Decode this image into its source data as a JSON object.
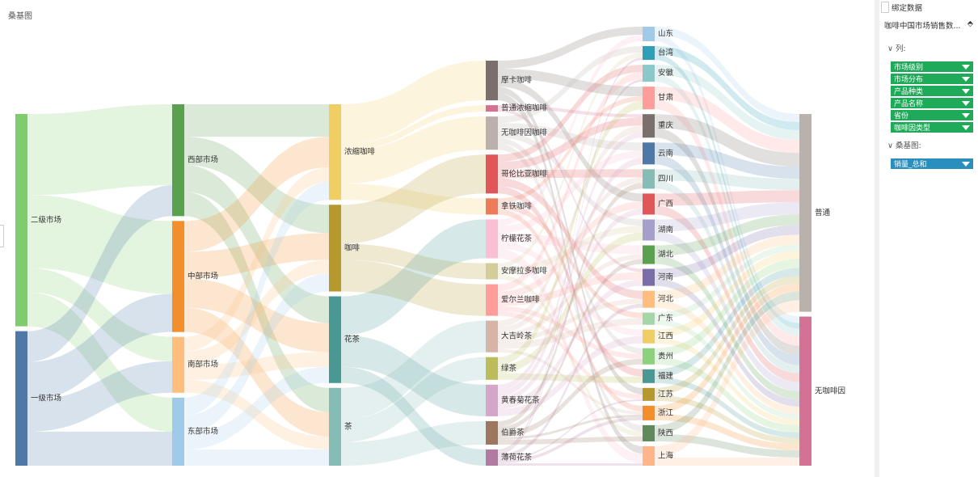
{
  "chart_data": {
    "type": "sankey",
    "title": "桑基图",
    "node_padding": 6,
    "levels": [
      {
        "nodes": [
          {
            "name": "二级市场",
            "color": "#7fcc6d",
            "flows": [
              100,
              90,
              30,
              42
            ]
          },
          {
            "name": "一级市场",
            "color": "#4e79a7",
            "flows": [
              38,
              47,
              39,
              42
            ]
          }
        ]
      },
      {
        "nodes": [
          {
            "name": "西部市场",
            "color": "#59a14f",
            "flows": [
              40,
              35,
              33,
              30
            ]
          },
          {
            "name": "中部市场",
            "color": "#f28e2b",
            "flows": [
              38,
              33,
              36,
              30
            ]
          },
          {
            "name": "南部市场",
            "color": "#ffbe7d",
            "flows": [
              18,
              17,
              18,
              16
            ]
          },
          {
            "name": "东部市场",
            "color": "#a0cbe8",
            "flows": [
              22,
              22,
              20,
              20
            ]
          }
        ]
      },
      {
        "nodes": [
          {
            "name": "浓缩咖啡",
            "color": "#f1ce63",
            "flows": [
              49,
              8,
              41,
              0,
              20,
              0,
              0,
              0,
              0,
              0,
              0,
              0,
              0
            ]
          },
          {
            "name": "咖啡",
            "color": "#b6992d",
            "flows": [
              0,
              0,
              0,
              48,
              0,
              0,
              20,
              39,
              0,
              0,
              0,
              0,
              0
            ]
          },
          {
            "name": "花茶",
            "color": "#499894",
            "flows": [
              0,
              0,
              0,
              0,
              0,
              48,
              0,
              0,
              0,
              0,
              39,
              0,
              20
            ]
          },
          {
            "name": "茶",
            "color": "#86bcb6",
            "flows": [
              0,
              0,
              0,
              0,
              0,
              0,
              0,
              0,
              39,
              28,
              0,
              29,
              0
            ]
          }
        ]
      },
      {
        "nodes": [
          {
            "name": "摩卡咖啡",
            "color": "#79706e",
            "flows": [
              10,
              0,
              0,
              12,
              0,
              0,
              0,
              10,
              0,
              0,
              0,
              0,
              0,
              0,
              0,
              0,
              8,
              0,
              0,
              9
            ]
          },
          {
            "name": "普通浓缩咖啡",
            "color": "#d37295",
            "flows": [
              0,
              0,
              0,
              0,
              4,
              0,
              0,
              0,
              0,
              0,
              4,
              0,
              0,
              0,
              0,
              0,
              0,
              0,
              0,
              0
            ]
          },
          {
            "name": "无咖啡因咖啡",
            "color": "#bab0ac",
            "flows": [
              0,
              8,
              0,
              0,
              0,
              10,
              0,
              0,
              8,
              0,
              0,
              0,
              0,
              0,
              7,
              0,
              0,
              0,
              8,
              0
            ]
          },
          {
            "name": "哥伦比亚咖啡",
            "color": "#e15759",
            "flows": [
              0,
              0,
              9,
              0,
              10,
              0,
              10,
              0,
              0,
              0,
              0,
              10,
              0,
              0,
              0,
              9,
              0,
              0,
              0,
              0
            ]
          },
          {
            "name": "拿铁咖啡",
            "color": "#ed7d5a",
            "flows": [
              0,
              0,
              0,
              6,
              0,
              0,
              0,
              0,
              0,
              0,
              0,
              0,
              7,
              0,
              0,
              0,
              0,
              7,
              0,
              0
            ]
          },
          {
            "name": "柠檬花茶",
            "color": "#fabfd2",
            "flows": [
              8,
              0,
              0,
              0,
              0,
              9,
              0,
              0,
              0,
              11,
              0,
              0,
              0,
              8,
              0,
              0,
              0,
              0,
              0,
              12
            ]
          },
          {
            "name": "安摩拉多咖啡",
            "color": "#d4cd9a",
            "flows": [
              0,
              6,
              0,
              0,
              0,
              0,
              0,
              0,
              8,
              0,
              0,
              0,
              0,
              0,
              0,
              0,
              0,
              0,
              6,
              0
            ]
          },
          {
            "name": "爱尔兰咖啡",
            "color": "#ff9d9a",
            "flows": [
              0,
              0,
              9,
              0,
              0,
              0,
              0,
              9,
              0,
              0,
              9,
              0,
              0,
              0,
              6,
              0,
              6,
              0,
              0,
              0
            ]
          },
          {
            "name": "大吉岭茶",
            "color": "#d7b5a6",
            "flows": [
              0,
              0,
              0,
              0,
              8,
              0,
              7,
              0,
              0,
              6,
              0,
              6,
              8,
              0,
              0,
              0,
              0,
              4,
              0,
              0
            ]
          },
          {
            "name": "绿茶",
            "color": "#bcbd5a",
            "flows": [
              0,
              0,
              0,
              10,
              0,
              0,
              0,
              0,
              10,
              0,
              0,
              0,
              0,
              0,
              0,
              8,
              0,
              0,
              0,
              0
            ]
          },
          {
            "name": "黄春菊花茶",
            "color": "#d4a6c8",
            "flows": [
              0,
              0,
              0,
              0,
              7,
              8,
              0,
              7,
              0,
              0,
              8,
              0,
              0,
              9,
              0,
              0,
              0,
              0,
              0,
              0
            ]
          },
          {
            "name": "伯爵茶",
            "color": "#9d7660",
            "flows": [
              0,
              0,
              0,
              0,
              0,
              0,
              7,
              0,
              0,
              6,
              0,
              0,
              0,
              0,
              7,
              0,
              0,
              3,
              6,
              0
            ]
          },
          {
            "name": "薄荷花茶",
            "color": "#b07aa1",
            "flows": [
              0,
              3,
              3,
              0,
              0,
              0,
              0,
              0,
              0,
              0,
              0,
              5,
              0,
              0,
              0,
              0,
              2,
              4,
              0,
              3
            ]
          }
        ]
      },
      {
        "nodes": [
          {
            "name": "山东",
            "color": "#a0cbe8",
            "flows": [
              10,
              8
            ]
          },
          {
            "name": "台湾",
            "color": "#2f9fb8",
            "flows": [
              10,
              7
            ]
          },
          {
            "name": "安徽",
            "color": "#8cc7c9",
            "flows": [
              12,
              9
            ]
          },
          {
            "name": "甘肃",
            "color": "#ff9d9a",
            "flows": [
              16,
              12
            ]
          },
          {
            "name": "重庆",
            "color": "#79706e",
            "flows": [
              17,
              12
            ]
          },
          {
            "name": "云南",
            "color": "#4e79a7",
            "flows": [
              15,
              12
            ]
          },
          {
            "name": "四川",
            "color": "#86bcb6",
            "flows": [
              14,
              10
            ]
          },
          {
            "name": "广西",
            "color": "#e15759",
            "flows": [
              15,
              11
            ]
          },
          {
            "name": "湖南",
            "color": "#a5a0cb",
            "flows": [
              15,
              11
            ]
          },
          {
            "name": "湖北",
            "color": "#59a14f",
            "flows": [
              13,
              10
            ]
          },
          {
            "name": "河南",
            "color": "#7b6ea8",
            "flows": [
              12,
              9
            ]
          },
          {
            "name": "河北",
            "color": "#ffbe7d",
            "flows": [
              12,
              9
            ]
          },
          {
            "name": "广东",
            "color": "#a6d6a8",
            "flows": [
              8,
              7
            ]
          },
          {
            "name": "江西",
            "color": "#f1ce63",
            "flows": [
              10,
              7
            ]
          },
          {
            "name": "贵州",
            "color": "#8cd17d",
            "flows": [
              11,
              9
            ]
          },
          {
            "name": "福建",
            "color": "#499894",
            "flows": [
              10,
              7
            ]
          },
          {
            "name": "江苏",
            "color": "#b6992d",
            "flows": [
              9,
              7
            ]
          },
          {
            "name": "浙江",
            "color": "#f28e2b",
            "flows": [
              10,
              8
            ]
          },
          {
            "name": "陕西",
            "color": "#5f8a5c",
            "flows": [
              11,
              9
            ]
          },
          {
            "name": "上海",
            "color": "#ffb58a",
            "flows": [
              14,
              10
            ]
          }
        ]
      },
      {
        "nodes": [
          {
            "name": "普通",
            "color": "#bab0ac"
          },
          {
            "name": "无咖啡因",
            "color": "#d37295"
          }
        ]
      }
    ]
  },
  "panel": {
    "header": "绑定数据",
    "source": "咖啡中国市场销售数...",
    "columns_label": "列:",
    "columns": [
      "市场级别",
      "市场分布",
      "产品种类",
      "产品名称",
      "省份",
      "咖啡因类型"
    ],
    "sankey_label": "桑基图:",
    "measure": "销量_总和"
  }
}
